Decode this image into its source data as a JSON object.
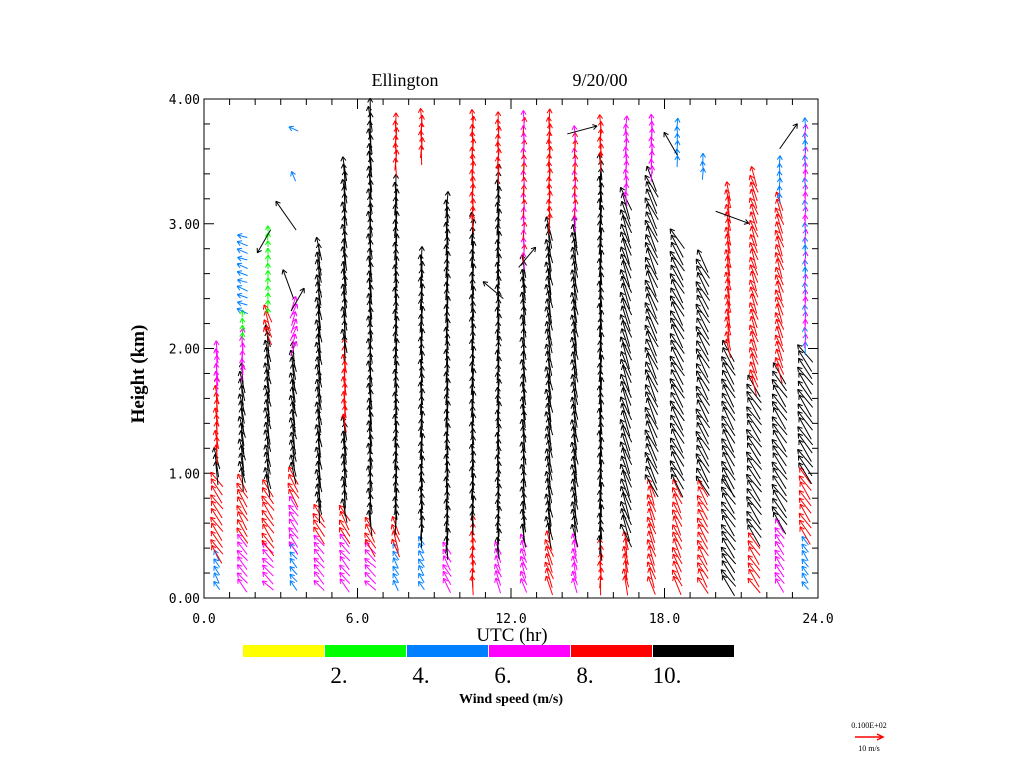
{
  "chart_data": {
    "type": "wind-profile-vectors",
    "title": "Ellington",
    "date": "9/20/00",
    "xlabel": "UTC (hr)",
    "ylabel": "Height (km)",
    "xlim": [
      0,
      24
    ],
    "ylim": [
      0,
      4
    ],
    "xticks": [
      "0.0",
      "6.0",
      "12.0",
      "18.0",
      "24.0"
    ],
    "xtick_values": [
      0,
      6,
      12,
      18,
      24
    ],
    "yticks": [
      "0.00",
      "1.00",
      "2.00",
      "3.00",
      "4.00"
    ],
    "ytick_values": [
      0,
      1,
      2,
      3,
      4
    ],
    "colorbar": {
      "label": "Wind speed (m/s)",
      "colors": [
        "#ffff00",
        "#00ff00",
        "#0080ff",
        "#ff00ff",
        "#ff0000",
        "#000000"
      ],
      "thresholds": [
        2,
        4,
        6,
        8,
        10
      ],
      "tick_labels": [
        "2.",
        "4.",
        "6.",
        "8.",
        "10."
      ]
    },
    "reference_vector": {
      "value_label": "0.100E+02",
      "label": "10 m/s",
      "speed": 10,
      "color": "#ff0000"
    },
    "level_spacing_km": 0.06,
    "profiles_note": "bands: [z_bottom_km, z_top_km, speed_m_s, direction_deg (0=up, negative=left)]",
    "profiles": [
      {
        "hour": 0.5,
        "bands": [
          [
            0.1,
            0.35,
            5,
            -30
          ],
          [
            0.35,
            1.0,
            9,
            -35
          ],
          [
            1.0,
            1.15,
            10.5,
            -10
          ],
          [
            1.15,
            1.7,
            9,
            -5
          ],
          [
            1.7,
            2.0,
            7,
            -5
          ]
        ]
      },
      {
        "hour": 1.5,
        "bands": [
          [
            0.1,
            0.5,
            7,
            -40
          ],
          [
            0.5,
            0.95,
            9,
            -30
          ],
          [
            0.95,
            1.8,
            10.5,
            -10
          ],
          [
            1.8,
            2.1,
            7,
            0
          ],
          [
            2.1,
            2.3,
            3,
            0
          ],
          [
            2.3,
            2.9,
            5,
            -70
          ]
        ]
      },
      {
        "hour": 2.5,
        "bands": [
          [
            0.1,
            0.4,
            7,
            -45
          ],
          [
            0.4,
            0.9,
            9,
            -35
          ],
          [
            0.9,
            2.1,
            10.5,
            -10
          ],
          [
            2.1,
            2.3,
            9,
            -20
          ],
          [
            2.3,
            3.0,
            3,
            0
          ]
        ]
      },
      {
        "hour": 3.5,
        "bands": [
          [
            0.1,
            0.4,
            5,
            -40
          ],
          [
            0.4,
            0.8,
            7,
            -35
          ],
          [
            0.8,
            1.0,
            9,
            -30
          ],
          [
            1.0,
            2.0,
            10.5,
            -10
          ],
          [
            2.0,
            2.4,
            7,
            20
          ],
          [
            3.38,
            3.42,
            5,
            -20
          ],
          [
            3.76,
            3.8,
            5,
            -60
          ]
        ]
      },
      {
        "hour": 4.5,
        "bands": [
          [
            0.1,
            0.5,
            7,
            -40
          ],
          [
            0.5,
            0.7,
            9,
            -35
          ],
          [
            0.7,
            2.85,
            11,
            -8
          ]
        ]
      },
      {
        "hour": 5.5,
        "bands": [
          [
            0.1,
            0.5,
            7,
            -40
          ],
          [
            0.5,
            0.7,
            9,
            -30
          ],
          [
            0.7,
            1.4,
            11.5,
            -5
          ],
          [
            1.4,
            2.0,
            9,
            -5
          ],
          [
            2.0,
            3.45,
            11.5,
            -5
          ]
        ]
      },
      {
        "hour": 6.5,
        "bands": [
          [
            0.1,
            0.4,
            7,
            -45
          ],
          [
            0.4,
            0.6,
            9,
            -30
          ],
          [
            0.6,
            3.9,
            12,
            -3
          ]
        ]
      },
      {
        "hour": 7.5,
        "bands": [
          [
            0.1,
            0.4,
            5,
            -30
          ],
          [
            0.4,
            0.6,
            9,
            -20
          ],
          [
            0.6,
            3.3,
            11,
            0
          ],
          [
            3.45,
            3.85,
            9,
            0
          ]
        ]
      },
      {
        "hour": 8.5,
        "bands": [
          [
            0.1,
            0.5,
            5,
            -30
          ],
          [
            0.5,
            2.75,
            11,
            0
          ],
          [
            3.55,
            3.85,
            9,
            0
          ]
        ]
      },
      {
        "hour": 9.5,
        "bands": [
          [
            0.1,
            0.4,
            7,
            -30
          ],
          [
            0.4,
            3.2,
            11,
            0
          ]
        ]
      },
      {
        "hour": 10.5,
        "bands": [
          [
            0.1,
            0.6,
            9,
            0
          ],
          [
            0.6,
            3.0,
            11,
            0
          ],
          [
            3.0,
            3.85,
            9,
            0
          ]
        ]
      },
      {
        "hour": 11.5,
        "bands": [
          [
            0.1,
            0.4,
            7,
            -20
          ],
          [
            0.4,
            2.0,
            10.5,
            0
          ],
          [
            2.0,
            3.4,
            11,
            0
          ],
          [
            3.4,
            3.85,
            9,
            0
          ]
        ]
      },
      {
        "hour": 12.5,
        "bands": [
          [
            0.1,
            0.5,
            7,
            -20
          ],
          [
            0.5,
            2.7,
            11,
            -5
          ],
          [
            2.7,
            3.85,
            8,
            0
          ]
        ]
      },
      {
        "hour": 13.5,
        "bands": [
          [
            0.1,
            0.5,
            9,
            -20
          ],
          [
            0.5,
            3.0,
            11.5,
            -10
          ],
          [
            3.0,
            3.85,
            9,
            0
          ]
        ]
      },
      {
        "hour": 14.5,
        "bands": [
          [
            0.1,
            0.5,
            7,
            -15
          ],
          [
            0.5,
            3.0,
            11,
            -10
          ],
          [
            3.0,
            3.75,
            8,
            0
          ]
        ]
      },
      {
        "hour": 15.5,
        "bands": [
          [
            0.1,
            0.4,
            9,
            0
          ],
          [
            0.4,
            3.5,
            12,
            0
          ],
          [
            3.5,
            3.85,
            9,
            0
          ]
        ]
      },
      {
        "hour": 16.5,
        "bands": [
          [
            0.1,
            0.5,
            9,
            -10
          ],
          [
            0.5,
            3.2,
            12,
            -20
          ],
          [
            3.2,
            3.85,
            7,
            0
          ]
        ]
      },
      {
        "hour": 17.5,
        "bands": [
          [
            0.1,
            0.9,
            9,
            -20
          ],
          [
            0.9,
            3.4,
            12,
            -25
          ],
          [
            3.4,
            3.85,
            7,
            0
          ]
        ]
      },
      {
        "hour": 18.5,
        "bands": [
          [
            0.1,
            0.9,
            9,
            -25
          ],
          [
            0.9,
            2.9,
            11.5,
            -30
          ],
          [
            3.5,
            3.8,
            5,
            0
          ]
        ]
      },
      {
        "hour": 19.5,
        "bands": [
          [
            0.1,
            0.9,
            9,
            -30
          ],
          [
            0.9,
            2.75,
            11,
            -30
          ],
          [
            3.4,
            3.55,
            5,
            0
          ]
        ]
      },
      {
        "hour": 20.5,
        "bands": [
          [
            0.1,
            0.9,
            10.5,
            -35
          ],
          [
            0.9,
            2.0,
            11,
            -30
          ],
          [
            2.0,
            3.3,
            9,
            -10
          ]
        ]
      },
      {
        "hour": 21.5,
        "bands": [
          [
            0.1,
            0.5,
            9,
            -35
          ],
          [
            0.5,
            1.7,
            11,
            -35
          ],
          [
            1.7,
            3.4,
            9,
            -20
          ]
        ]
      },
      {
        "hour": 22.5,
        "bands": [
          [
            0.1,
            0.6,
            7,
            -35
          ],
          [
            0.6,
            1.8,
            11,
            -35
          ],
          [
            1.8,
            3.2,
            9,
            -20
          ],
          [
            3.2,
            3.55,
            5,
            0
          ]
        ]
      },
      {
        "hour": 23.5,
        "bands": [
          [
            0.1,
            0.5,
            5,
            -35
          ],
          [
            0.5,
            1.0,
            9,
            -35
          ],
          [
            1.0,
            2.0,
            11,
            -35
          ],
          [
            2.0,
            3.85,
            6,
            0
          ]
        ]
      }
    ],
    "outliers": [
      {
        "hour": 3.6,
        "z": 2.95,
        "speed": 16,
        "dir": -35
      },
      {
        "hour": 3.5,
        "z": 2.4,
        "speed": 14,
        "dir": -20
      },
      {
        "hour": 3.4,
        "z": 2.3,
        "speed": 12,
        "dir": 30
      },
      {
        "hour": 2.6,
        "z": 2.95,
        "speed": 12,
        "dir": -150
      },
      {
        "hour": 11.7,
        "z": 2.4,
        "speed": 12,
        "dir": -50
      },
      {
        "hour": 12.3,
        "z": 2.65,
        "speed": 12,
        "dir": 40
      },
      {
        "hour": 14.2,
        "z": 3.72,
        "speed": 14,
        "dir": 75
      },
      {
        "hour": 18.5,
        "z": 3.55,
        "speed": 12,
        "dir": -30
      },
      {
        "hour": 20.0,
        "z": 3.1,
        "speed": 16,
        "dir": 110
      },
      {
        "hour": 22.5,
        "z": 3.6,
        "speed": 14,
        "dir": 35
      }
    ]
  }
}
